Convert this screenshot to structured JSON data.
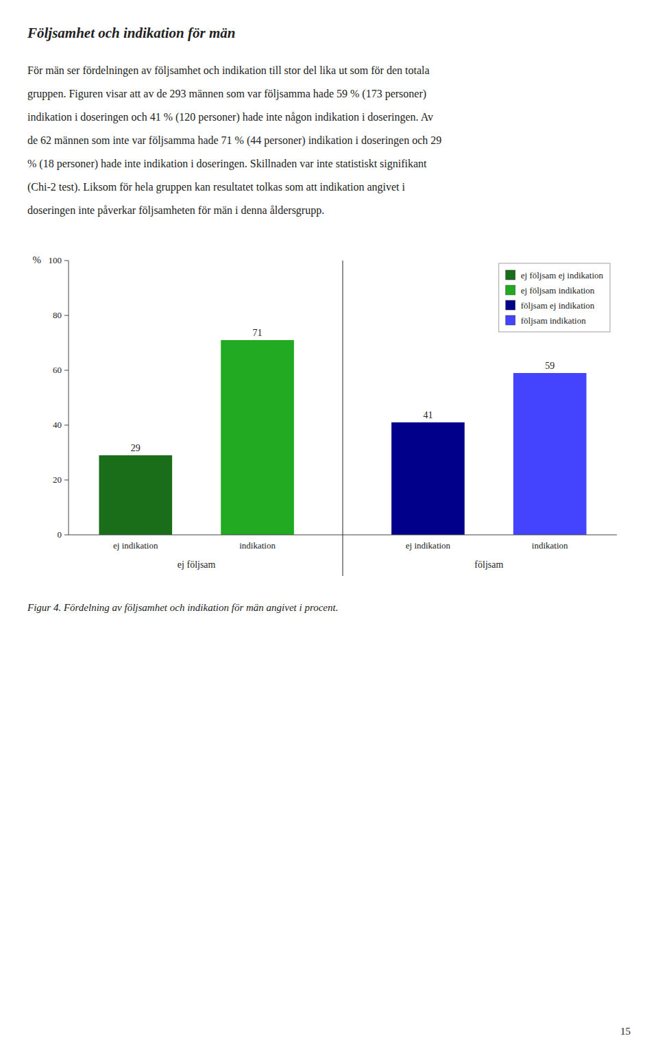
{
  "page": {
    "heading": "Följsamhet och indikation för män",
    "body": [
      "För män ser fördelningen av följsamhet och indikation till stor del lika ut som för den totala",
      "gruppen. Figuren visar att av de 293 männen som var följsamma hade 59 % (173 personer)",
      "indikation i doseringen och 41 % (120 personer) hade inte någon indikation i doseringen. Av",
      "de 62 männen som inte var följsamma hade 71 % (44 personer) indikation i doseringen och 29",
      "% (18 personer) hade inte indikation i doseringen. Skillnaden var inte statistiskt signifikant",
      "(Chi-2 test). Liksom för hela gruppen kan resultatet tolkas som att indikation angivet i",
      "doseringen inte påverkar följsamheten för män i denna åldersgrupp."
    ],
    "caption": "Figur 4. Fördelning av följsamhet och indikation för män angivet i procent.",
    "page_number": "15"
  },
  "chart_data": {
    "type": "bar",
    "categories": [
      "ej indikation",
      "indikation",
      "ej indikation",
      "indikation"
    ],
    "group_labels": [
      "ej följsam",
      "följsam"
    ],
    "series": [
      {
        "name": "ej följsam ej indikation",
        "color": "#1a6e1a",
        "values": [
          29,
          null,
          null,
          null
        ]
      },
      {
        "name": "ej följsam indikation",
        "color": "#22aa22",
        "values": [
          null,
          71,
          null,
          null
        ]
      },
      {
        "name": "följsam ej indikation",
        "color": "#00008b",
        "values": [
          null,
          null,
          41,
          null
        ]
      },
      {
        "name": "följsam indikation",
        "color": "#4444ff",
        "values": [
          null,
          null,
          null,
          59
        ]
      }
    ],
    "y_label": "%",
    "ylim": [
      0,
      100
    ],
    "yticks": [
      0,
      20,
      40,
      60,
      80,
      100
    ],
    "grid": false,
    "legend": "upper right",
    "data_labels": true
  }
}
